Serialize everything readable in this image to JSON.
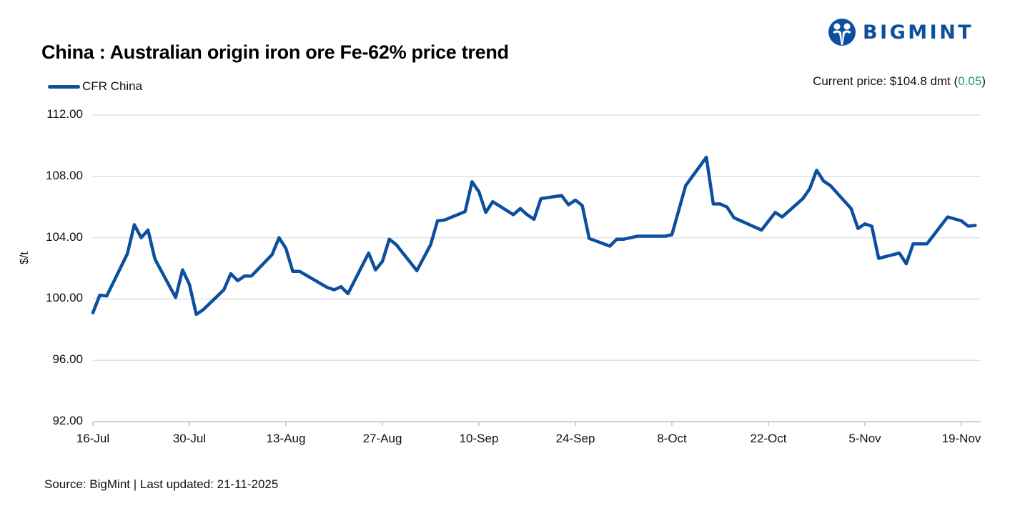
{
  "header": {
    "title": "China : Australian origin iron ore Fe-62% price trend",
    "brand": "BIGMINT",
    "current_price_label": "Current price: $104.8 dmt (",
    "current_price_change": "0.05",
    "current_price_close": ")"
  },
  "legend": {
    "series_name": "CFR China",
    "color": "#0b4f9e"
  },
  "footer": {
    "source": "Source: BigMint | Last updated: 21-11-2025"
  },
  "colors": {
    "line": "#0b4f9e",
    "grid": "#e0e0e0",
    "positive": "#1aa35a",
    "brand": "#0b4f9e"
  },
  "chart_data": {
    "type": "line",
    "title": "China : Australian origin iron ore Fe-62% price trend",
    "xlabel": "",
    "ylabel": "$/t",
    "ylim": [
      92,
      112
    ],
    "yticks": [
      "112.00",
      "108.00",
      "104.00",
      "100.00",
      "96.00",
      "92.00"
    ],
    "xticks": [
      "16-Jul",
      "30-Jul",
      "13-Aug",
      "27-Aug",
      "10-Sep",
      "24-Sep",
      "8-Oct",
      "22-Oct",
      "5-Nov",
      "19-Nov"
    ],
    "grid": true,
    "legend_position": "top-left",
    "series": [
      {
        "name": "CFR China",
        "points": [
          {
            "day": 0,
            "value": 99.1
          },
          {
            "day": 1,
            "value": 100.25
          },
          {
            "day": 2,
            "value": 100.2
          },
          {
            "day": 5,
            "value": 102.95
          },
          {
            "day": 6,
            "value": 104.85
          },
          {
            "day": 7,
            "value": 104.0
          },
          {
            "day": 8,
            "value": 104.5
          },
          {
            "day": 9,
            "value": 102.6
          },
          {
            "day": 12,
            "value": 100.1
          },
          {
            "day": 13,
            "value": 101.9
          },
          {
            "day": 14,
            "value": 100.95
          },
          {
            "day": 15,
            "value": 99.0
          },
          {
            "day": 16,
            "value": 99.3
          },
          {
            "day": 19,
            "value": 100.6
          },
          {
            "day": 20,
            "value": 101.65
          },
          {
            "day": 21,
            "value": 101.2
          },
          {
            "day": 22,
            "value": 101.5
          },
          {
            "day": 23,
            "value": 101.5
          },
          {
            "day": 26,
            "value": 102.9
          },
          {
            "day": 27,
            "value": 104.0
          },
          {
            "day": 28,
            "value": 103.3
          },
          {
            "day": 29,
            "value": 101.8
          },
          {
            "day": 30,
            "value": 101.8
          },
          {
            "day": 34,
            "value": 100.75
          },
          {
            "day": 35,
            "value": 100.6
          },
          {
            "day": 36,
            "value": 100.8
          },
          {
            "day": 37,
            "value": 100.35
          },
          {
            "day": 40,
            "value": 103.0
          },
          {
            "day": 41,
            "value": 101.9
          },
          {
            "day": 42,
            "value": 102.45
          },
          {
            "day": 43,
            "value": 103.9
          },
          {
            "day": 44,
            "value": 103.55
          },
          {
            "day": 47,
            "value": 101.85
          },
          {
            "day": 49,
            "value": 103.55
          },
          {
            "day": 50,
            "value": 105.1
          },
          {
            "day": 51,
            "value": 105.15
          },
          {
            "day": 54,
            "value": 105.7
          },
          {
            "day": 55,
            "value": 107.65
          },
          {
            "day": 56,
            "value": 107.0
          },
          {
            "day": 57,
            "value": 105.65
          },
          {
            "day": 58,
            "value": 106.35
          },
          {
            "day": 61,
            "value": 105.5
          },
          {
            "day": 62,
            "value": 105.9
          },
          {
            "day": 63,
            "value": 105.5
          },
          {
            "day": 64,
            "value": 105.2
          },
          {
            "day": 65,
            "value": 106.55
          },
          {
            "day": 68,
            "value": 106.75
          },
          {
            "day": 69,
            "value": 106.15
          },
          {
            "day": 70,
            "value": 106.45
          },
          {
            "day": 71,
            "value": 106.1
          },
          {
            "day": 72,
            "value": 103.95
          },
          {
            "day": 75,
            "value": 103.45
          },
          {
            "day": 76,
            "value": 103.9
          },
          {
            "day": 77,
            "value": 103.9
          },
          {
            "day": 79,
            "value": 104.1
          },
          {
            "day": 83,
            "value": 104.1
          },
          {
            "day": 84,
            "value": 104.2
          },
          {
            "day": 86,
            "value": 107.4
          },
          {
            "day": 89,
            "value": 109.25
          },
          {
            "day": 90,
            "value": 106.2
          },
          {
            "day": 91,
            "value": 106.2
          },
          {
            "day": 92,
            "value": 106.0
          },
          {
            "day": 93,
            "value": 105.3
          },
          {
            "day": 97,
            "value": 104.5
          },
          {
            "day": 99,
            "value": 105.65
          },
          {
            "day": 100,
            "value": 105.35
          },
          {
            "day": 103,
            "value": 106.55
          },
          {
            "day": 104,
            "value": 107.2
          },
          {
            "day": 105,
            "value": 108.4
          },
          {
            "day": 106,
            "value": 107.7
          },
          {
            "day": 107,
            "value": 107.4
          },
          {
            "day": 110,
            "value": 105.9
          },
          {
            "day": 111,
            "value": 104.6
          },
          {
            "day": 112,
            "value": 104.9
          },
          {
            "day": 113,
            "value": 104.75
          },
          {
            "day": 114,
            "value": 102.65
          },
          {
            "day": 117,
            "value": 103.0
          },
          {
            "day": 118,
            "value": 102.3
          },
          {
            "day": 119,
            "value": 103.6
          },
          {
            "day": 121,
            "value": 103.6
          },
          {
            "day": 124,
            "value": 105.35
          },
          {
            "day": 126,
            "value": 105.1
          },
          {
            "day": 127,
            "value": 104.75
          },
          {
            "day": 128,
            "value": 104.8
          }
        ]
      }
    ],
    "x_start_label": "16-Jul",
    "x_day_note": "day = days since 16-Jul"
  }
}
